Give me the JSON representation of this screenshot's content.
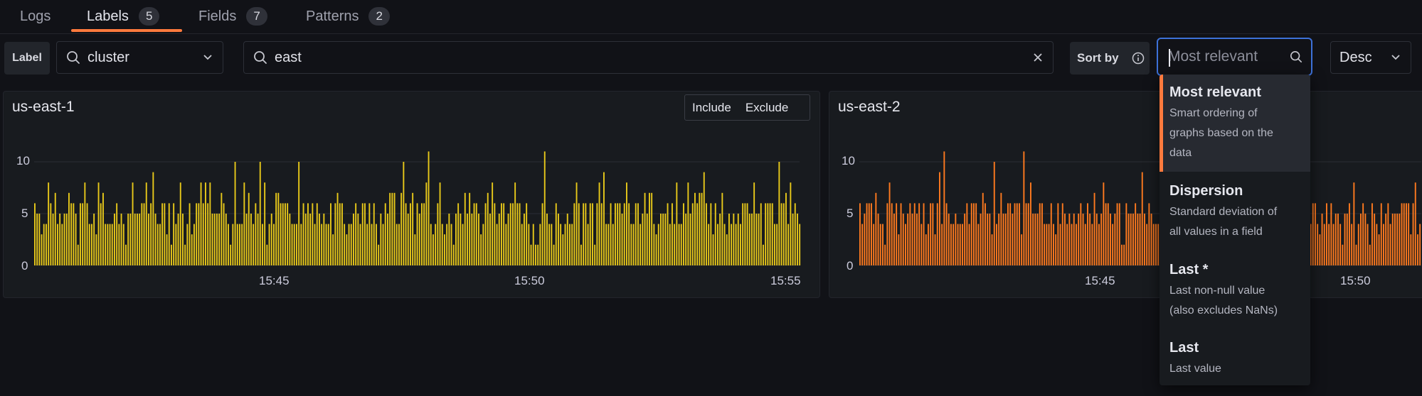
{
  "tabs": [
    {
      "label": "Logs",
      "count": null
    },
    {
      "label": "Labels",
      "count": "5"
    },
    {
      "label": "Fields",
      "count": "7"
    },
    {
      "label": "Patterns",
      "count": "2"
    }
  ],
  "toolbar": {
    "label_chip": "Label",
    "label_select_value": "cluster",
    "search_value": "east",
    "sort_by_label": "Sort by",
    "sort_placeholder": "Most relevant",
    "direction_value": "Desc"
  },
  "panels": [
    {
      "title": "us-east-1",
      "color": "#e8c91a",
      "include_label": "Include",
      "exclude_label": "Exclude"
    },
    {
      "title": "us-east-2",
      "color": "#ff7a1f"
    }
  ],
  "chart_axis": {
    "y_ticks": [
      "10",
      "5",
      "0"
    ],
    "x_ticks_panel1": [
      "15:45",
      "15:50",
      "15:55"
    ],
    "x_ticks_panel2": [
      "15:45",
      "15:50"
    ]
  },
  "sort_options": [
    {
      "title": "Most relevant",
      "desc": [
        "Smart ordering of",
        "graphs based on the",
        "data"
      ],
      "selected": true
    },
    {
      "title": "Dispersion",
      "desc": [
        "Standard deviation of",
        "all values in a field"
      ],
      "selected": false
    },
    {
      "title": "Last *",
      "desc": [
        "Last non-null value",
        "(also excludes NaNs)"
      ],
      "selected": false
    },
    {
      "title": "Last",
      "desc": [
        "Last value"
      ],
      "selected": false
    }
  ],
  "colors": {
    "accent": "#ff7a3d",
    "focus": "#3d71d9",
    "background": "#111217"
  }
}
